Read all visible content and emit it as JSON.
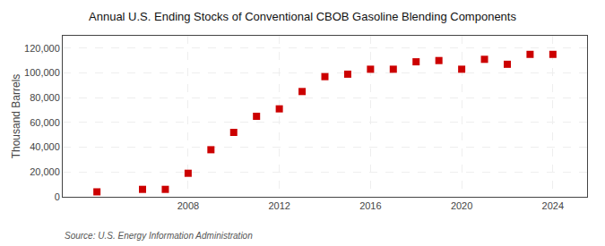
{
  "chart_data": {
    "type": "scatter",
    "title": "Annual U.S. Ending Stocks of Conventional CBOB Gasoline Blending Components",
    "ylabel": "Thousand Barrels",
    "source": "Source: U.S. Energy Information Administration",
    "x": [
      2004,
      2006,
      2007,
      2008,
      2009,
      2010,
      2011,
      2012,
      2013,
      2014,
      2015,
      2016,
      2017,
      2018,
      2019,
      2020,
      2021,
      2022,
      2023,
      2024
    ],
    "values": [
      4000,
      6000,
      6000,
      19000,
      38000,
      52000,
      65000,
      71000,
      85000,
      97000,
      99000,
      103000,
      103000,
      109000,
      110000,
      103000,
      111000,
      107000,
      115000,
      115000
    ],
    "color": "#cc0000",
    "marker": "square",
    "xlim": [
      2002.5,
      2025.5
    ],
    "xticks": [
      2008,
      2012,
      2016,
      2020,
      2024
    ],
    "ylim": [
      0,
      130000
    ],
    "yticks": [
      0,
      {
        "value": 20000,
        "label": "20,000"
      },
      {
        "value": 40000,
        "label": "40,000"
      },
      {
        "value": 60000,
        "label": "60,000"
      },
      {
        "value": 80000,
        "label": "80,000"
      },
      {
        "value": 100000,
        "label": "100,000"
      },
      {
        "value": 120000,
        "label": "120,000"
      }
    ],
    "grid": true
  }
}
